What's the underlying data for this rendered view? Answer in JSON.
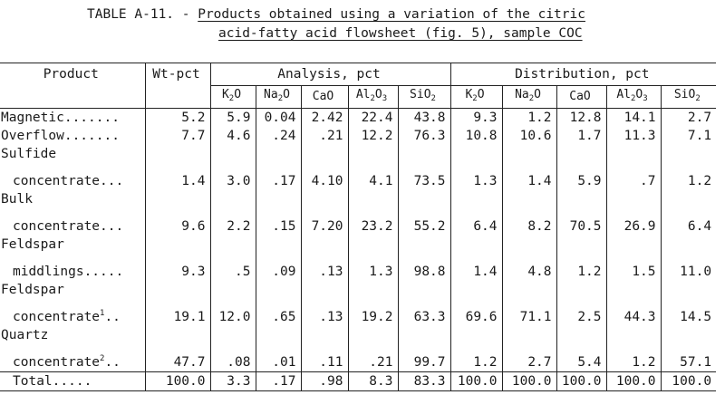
{
  "caption": {
    "lead": "TABLE A-11. - ",
    "line1": "Products obtained using a variation of the citric",
    "line2": "acid-fatty acid flowsheet (fig. 5), sample COC"
  },
  "headers": {
    "product": "Product",
    "wt": "Wt-pct",
    "analysis": "Analysis, pct",
    "distribution": "Distribution, pct",
    "analysis_cols": [
      {
        "base": "K",
        "sub": "2",
        "tail": "O"
      },
      {
        "base": "Na",
        "sub": "2",
        "tail": "O"
      },
      {
        "base": "CaO",
        "sub": "",
        "tail": ""
      },
      {
        "base": "Al",
        "sub": "2",
        "tail": "O",
        "sub2": "3"
      },
      {
        "base": "SiO",
        "sub": "2",
        "tail": ""
      }
    ],
    "distribution_cols": [
      {
        "base": "K",
        "sub": "2",
        "tail": "O"
      },
      {
        "base": "Na",
        "sub": "2",
        "tail": "O"
      },
      {
        "base": "CaO",
        "sub": "",
        "tail": ""
      },
      {
        "base": "Al",
        "sub": "2",
        "tail": "O",
        "sub2": "3"
      },
      {
        "base": "SiO",
        "sub": "2",
        "tail": ""
      }
    ]
  },
  "rows": [
    {
      "label": "Magnetic.......",
      "label2": "",
      "sup": "",
      "wt": "5.2",
      "analysis": [
        "5.9",
        "0.04",
        "2.42",
        "22.4",
        "43.8"
      ],
      "distribution": [
        "9.3",
        "1.2",
        "12.8",
        "14.1",
        "2.7"
      ]
    },
    {
      "label": "Overflow.......",
      "label2": "",
      "sup": "",
      "wt": "7.7",
      "analysis": [
        "4.6",
        ".24",
        ".21",
        "12.2",
        "76.3"
      ],
      "distribution": [
        "10.8",
        "10.6",
        "1.7",
        "11.3",
        "7.1"
      ]
    },
    {
      "label": "Sulfide",
      "label2": "concentrate...",
      "sup": "",
      "wt": "1.4",
      "analysis": [
        "3.0",
        ".17",
        "4.10",
        "4.1",
        "73.5"
      ],
      "distribution": [
        "1.3",
        "1.4",
        "5.9",
        ".7",
        "1.2"
      ]
    },
    {
      "label": "Bulk",
      "label2": "concentrate...",
      "sup": "",
      "wt": "9.6",
      "analysis": [
        "2.2",
        ".15",
        "7.20",
        "23.2",
        "55.2"
      ],
      "distribution": [
        "6.4",
        "8.2",
        "70.5",
        "26.9",
        "6.4"
      ]
    },
    {
      "label": "Feldspar",
      "label2": "middlings.....",
      "sup": "",
      "wt": "9.3",
      "analysis": [
        ".5",
        ".09",
        ".13",
        "1.3",
        "98.8"
      ],
      "distribution": [
        "1.4",
        "4.8",
        "1.2",
        "1.5",
        "11.0"
      ]
    },
    {
      "label": "Feldspar",
      "label2": "concentrate",
      "sup": "1",
      "tail": "..",
      "wt": "19.1",
      "analysis": [
        "12.0",
        ".65",
        ".13",
        "19.2",
        "63.3"
      ],
      "distribution": [
        "69.6",
        "71.1",
        "2.5",
        "44.3",
        "14.5"
      ]
    },
    {
      "label": "Quartz",
      "label2": "concentrate",
      "sup": "2",
      "tail": "..",
      "wt": "47.7",
      "analysis": [
        ".08",
        ".01",
        ".11",
        ".21",
        "99.7"
      ],
      "distribution": [
        "1.2",
        "2.7",
        "5.4",
        "1.2",
        "57.1"
      ]
    }
  ],
  "total": {
    "label": "Total.....",
    "wt": "100.0",
    "analysis": [
      "3.3",
      ".17",
      ".98",
      "8.3",
      "83.3"
    ],
    "distribution": [
      "100.0",
      "100.0",
      "100.0",
      "100.0",
      "100.0"
    ]
  }
}
